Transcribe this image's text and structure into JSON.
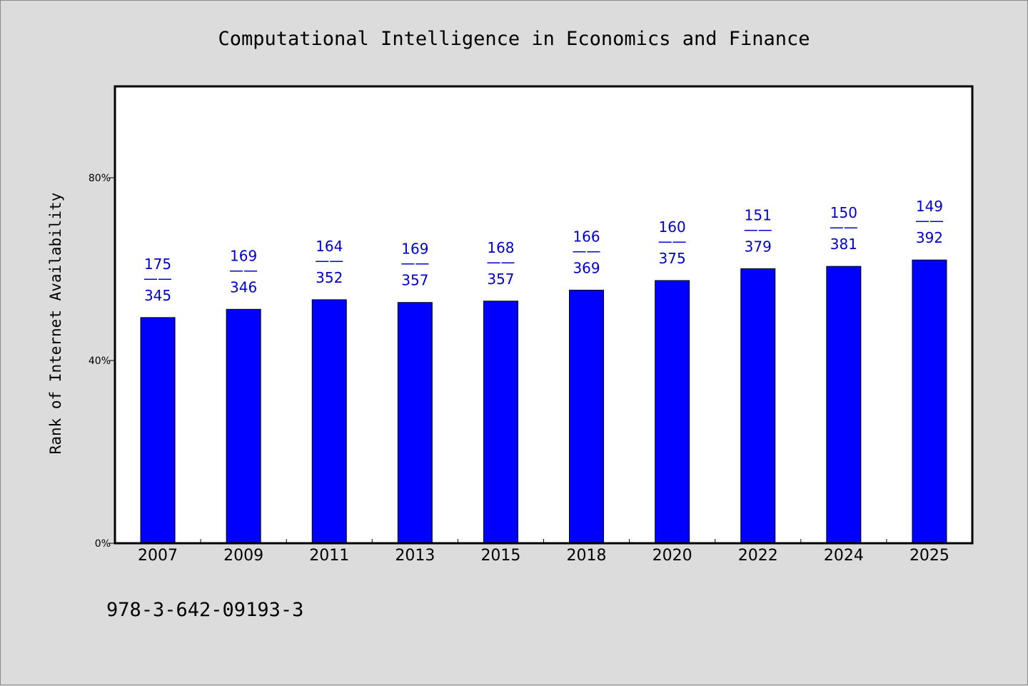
{
  "chart_data": {
    "type": "bar",
    "title": "Computational Intelligence in Economics and Finance",
    "xlabel": "",
    "ylabel": "Rank of Internet Availability",
    "categories": [
      "2007",
      "2009",
      "2011",
      "2013",
      "2015",
      "2018",
      "2020",
      "2022",
      "2024",
      "2025"
    ],
    "values": [
      49.4,
      51.2,
      53.3,
      52.7,
      53.0,
      55.4,
      57.5,
      60.1,
      60.6,
      62.0
    ],
    "label_top": [
      "175",
      "169",
      "164",
      "169",
      "168",
      "166",
      "160",
      "151",
      "150",
      "149"
    ],
    "label_bottom": [
      "345",
      "346",
      "352",
      "357",
      "357",
      "369",
      "375",
      "379",
      "381",
      "392"
    ],
    "label_separator": "——",
    "ylim": [
      0,
      100
    ],
    "yticks": [
      0,
      40,
      80
    ],
    "ytick_labels": [
      "0%",
      "40%",
      "80%"
    ],
    "grid": false,
    "bar_color": "#0000ff",
    "label_color": "#0000cc",
    "footnote": "978-3-642-09193-3"
  }
}
